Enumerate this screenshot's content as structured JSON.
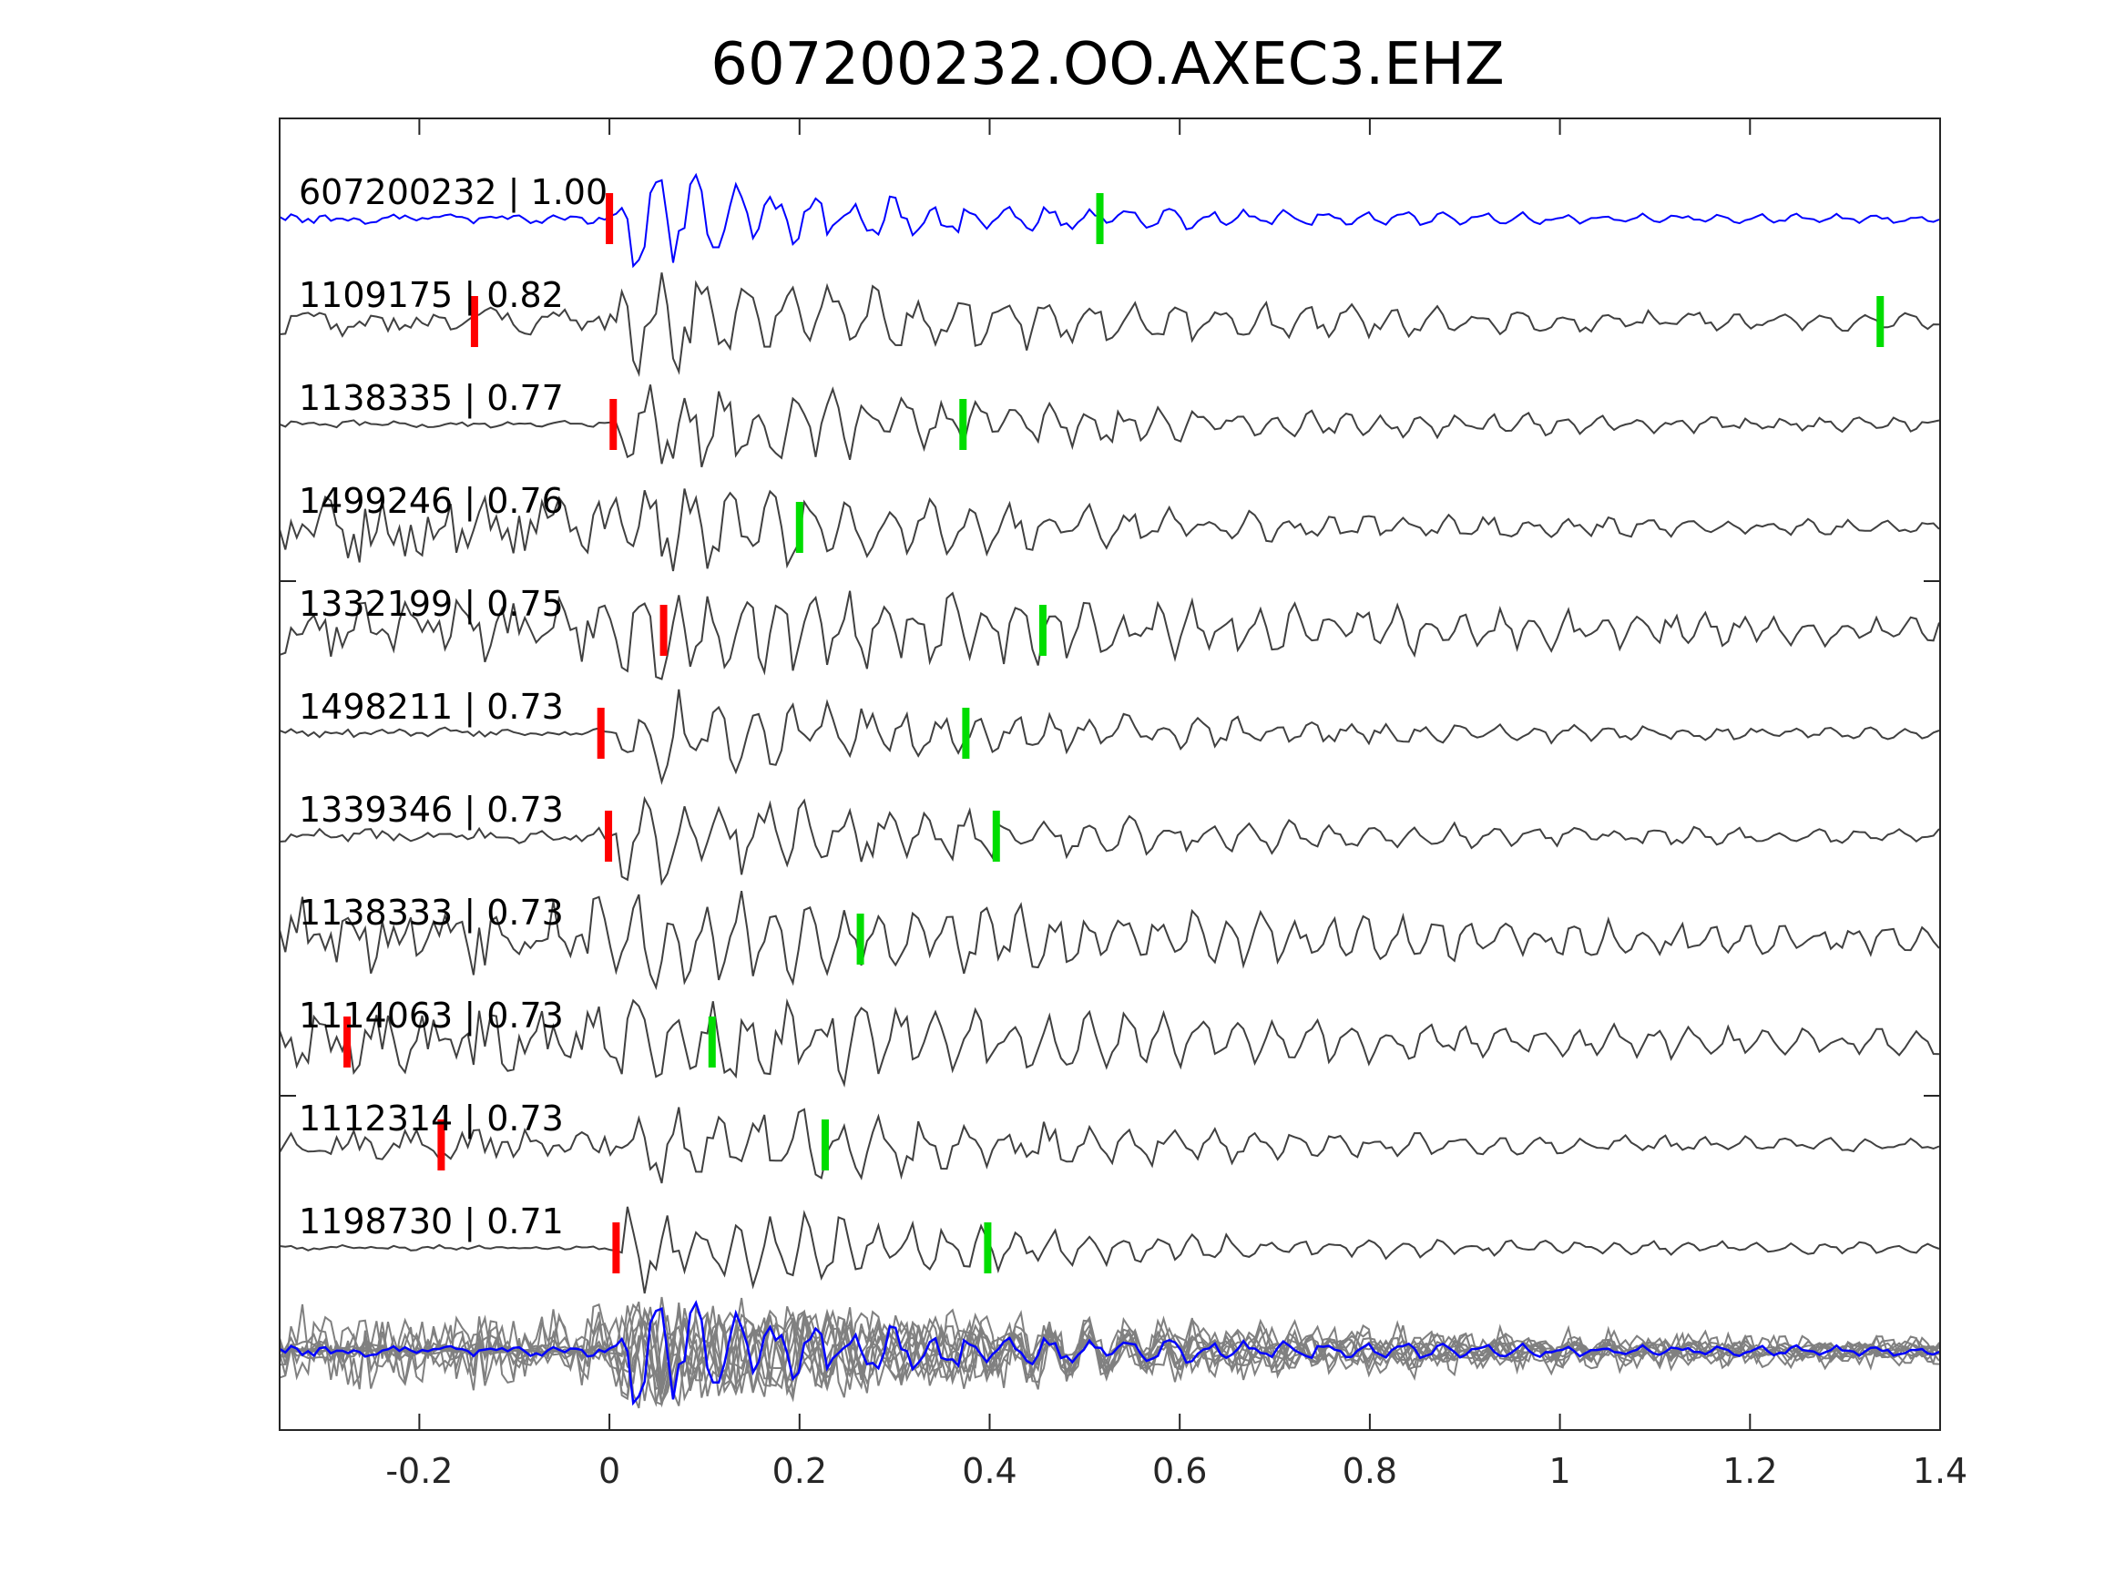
{
  "chart_data": {
    "type": "line",
    "title": "607200232.OO.AXEC3.EHZ",
    "xlabel": "",
    "ylabel": "",
    "xlim": [
      -0.347,
      1.4
    ],
    "x_ticks": [
      -0.2,
      0,
      0.2,
      0.4,
      0.6,
      0.8,
      1,
      1.2,
      1.4
    ],
    "x_tick_labels": [
      "-0.2",
      "0",
      "0.2",
      "0.4",
      "0.6",
      "0.8",
      "1",
      "1.2",
      "1.4"
    ],
    "grid": false,
    "colors": {
      "template": "#0000ff",
      "match": "#404040",
      "stack": "#808080",
      "p_pick": "#ff0000",
      "s_pick": "#00dd00",
      "axis": "#262626"
    },
    "traces": [
      {
        "id": "607200232",
        "cc": "1.00",
        "label": "607200232 | 1.00",
        "p_pick": 0.0,
        "s_pick": 0.516,
        "template": true
      },
      {
        "id": "1109175",
        "cc": "0.82",
        "label": "1109175 | 0.82",
        "p_pick": -0.142,
        "s_pick": 1.337
      },
      {
        "id": "1138335",
        "cc": "0.77",
        "label": "1138335 | 0.77",
        "p_pick": 0.004,
        "s_pick": 0.372
      },
      {
        "id": "1499246",
        "cc": "0.76",
        "label": "1499246 | 0.76",
        "p_pick": null,
        "s_pick": 0.2
      },
      {
        "id": "1332199",
        "cc": "0.75",
        "label": "1332199 | 0.75",
        "p_pick": 0.057,
        "s_pick": 0.456
      },
      {
        "id": "1498211",
        "cc": "0.73",
        "label": "1498211 | 0.73",
        "p_pick": -0.009,
        "s_pick": 0.375
      },
      {
        "id": "1339346",
        "cc": "0.73",
        "label": "1339346 | 0.73",
        "p_pick": -0.001,
        "s_pick": 0.407
      },
      {
        "id": "1138333",
        "cc": "0.73",
        "label": "1138333 | 0.73",
        "p_pick": null,
        "s_pick": 0.264
      },
      {
        "id": "1114063",
        "cc": "0.73",
        "label": "1114063 | 0.73",
        "p_pick": -0.276,
        "s_pick": 0.108
      },
      {
        "id": "1112314",
        "cc": "0.73",
        "label": "1112314 | 0.73",
        "p_pick": -0.177,
        "s_pick": 0.227
      },
      {
        "id": "1198730",
        "cc": "0.71",
        "label": "1198730 | 0.71",
        "p_pick": 0.007,
        "s_pick": 0.398
      }
    ],
    "stack": {
      "description_shown": false
    }
  }
}
